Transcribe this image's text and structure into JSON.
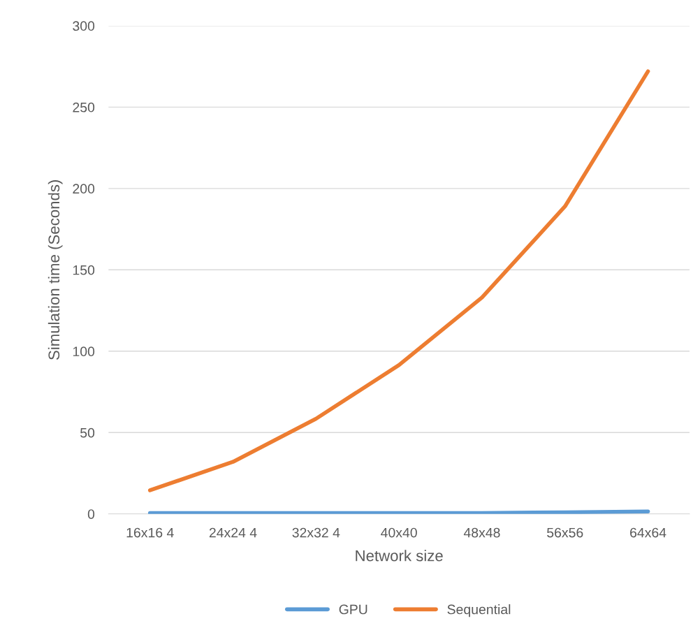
{
  "chart_data": {
    "type": "line",
    "xlabel": "Network size",
    "ylabel": "Simulation time (Seconds)",
    "categories": [
      "16x16 4",
      "24x24 4",
      "32x32 4",
      "40x40",
      "48x48",
      "56x56",
      "64x64"
    ],
    "series": [
      {
        "name": "GPU",
        "color": "#5b9bd5",
        "values": [
          0.5,
          0.5,
          0.5,
          0.5,
          0.5,
          1,
          1.5
        ]
      },
      {
        "name": "Sequential",
        "color": "#ed7d31",
        "values": [
          14.5,
          32,
          58.5,
          91.5,
          133,
          189,
          272
        ]
      }
    ],
    "ylim": [
      0,
      300
    ],
    "yticks": [
      0,
      50,
      100,
      150,
      200,
      250,
      300
    ],
    "grid": "y",
    "legend": "bottom",
    "marker": "none",
    "line_style": "solid"
  }
}
